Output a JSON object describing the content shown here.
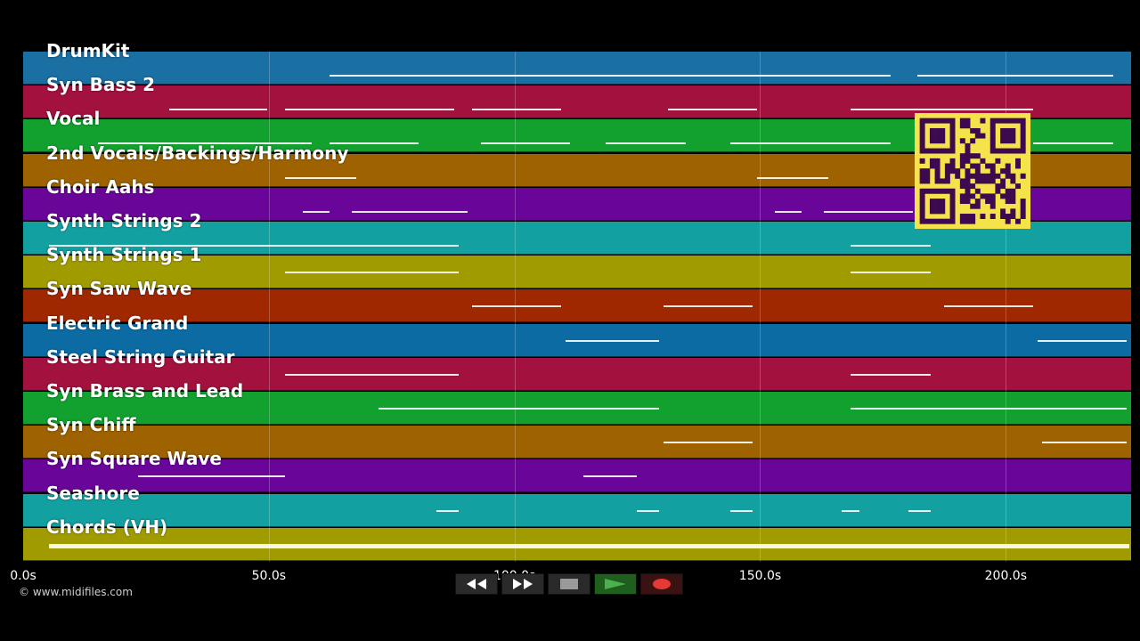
{
  "tracks": [
    {
      "label": "DrumKit",
      "color": "#1a6fa3"
    },
    {
      "label": "Syn Bass 2",
      "color": "#a3123f"
    },
    {
      "label": "Vocal",
      "color": "#12a12f"
    },
    {
      "label": "2nd Vocals/Backings/Harmony",
      "color": "#9e6200"
    },
    {
      "label": "Choir Aahs",
      "color": "#6a0599"
    },
    {
      "label": "Synth Strings 2",
      "color": "#12a0a0"
    },
    {
      "label": "Synth Strings 1",
      "color": "#a09c00"
    },
    {
      "label": "Syn Saw Wave",
      "color": "#a02800"
    },
    {
      "label": "Electric Grand",
      "color": "#0c6ba3"
    },
    {
      "label": "Steel String Guitar",
      "color": "#a3123f"
    },
    {
      "label": "Syn Brass and Lead",
      "color": "#12a12f"
    },
    {
      "label": "Syn Chiff",
      "color": "#9e6200"
    },
    {
      "label": "Syn Square Wave",
      "color": "#6a0599"
    },
    {
      "label": "Seashore",
      "color": "#12a0a0"
    },
    {
      "label": "Chords (VH)",
      "color": "#a09c00"
    }
  ],
  "timeline": {
    "ticks": [
      "0.0s",
      "50.0s",
      "100.0s",
      "150.0s",
      "200.0s"
    ],
    "tick_seconds": [
      0,
      50,
      100,
      150,
      200
    ],
    "max_seconds": 225.5
  },
  "copyright": "© www.midifiles.com",
  "transport": {
    "rewind_icon": "rewind-icon",
    "forward_icon": "fast-forward-icon",
    "stop_icon": "stop-icon",
    "play_icon": "play-icon",
    "record_icon": "record-icon",
    "play_color": "#4caf50",
    "record_color": "#e53935"
  },
  "qr_code": {
    "icon": "qr-code-icon",
    "color": "#f6e24a"
  }
}
